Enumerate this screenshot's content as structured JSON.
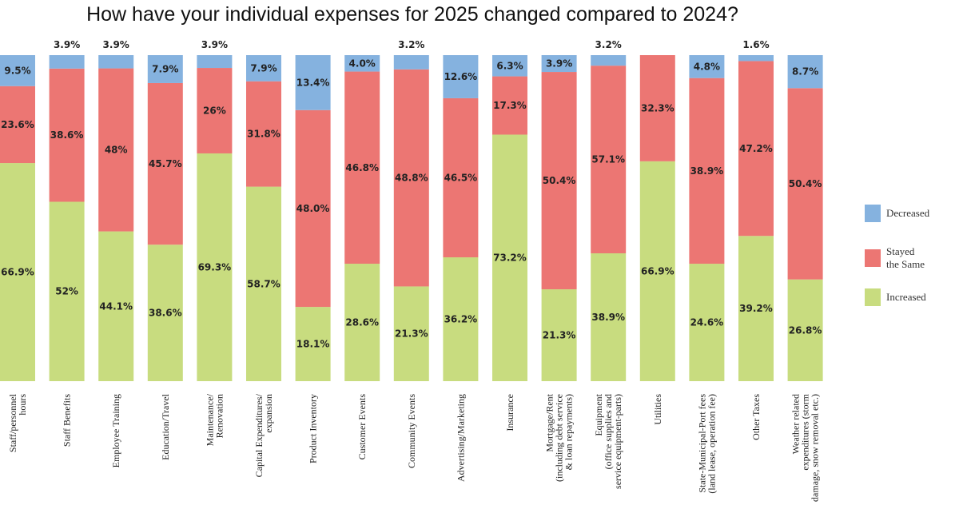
{
  "chart_data": {
    "type": "bar",
    "stacked": true,
    "title": "How have your individual expenses for 2025 changed compared to 2024?",
    "xlabel": "",
    "ylabel": "",
    "ylim": [
      0,
      100
    ],
    "grid": false,
    "legend_position": "right",
    "categories": [
      [
        "Staff/personnel",
        "hours"
      ],
      [
        "Staff Benefits"
      ],
      [
        "Employee Training"
      ],
      [
        "Education/Travel"
      ],
      [
        "Maintenance/",
        "Renovation"
      ],
      [
        "Capital Expenditures/",
        "expansion"
      ],
      [
        "Product Inventory"
      ],
      [
        "Customer Events"
      ],
      [
        "Community Events"
      ],
      [
        "Advertising/Marketing"
      ],
      [
        "Insurance"
      ],
      [
        "Mortgage/Rent",
        "(including debt service",
        "& loan repayments)"
      ],
      [
        "Equipment",
        "(office supplies and",
        "service equipment-parts)"
      ],
      [
        "Utilities"
      ],
      [
        "State-Municipal-Port fees",
        "(land lease, operation fee)"
      ],
      [
        "Other Taxes"
      ],
      [
        "Weather related",
        "expenditures (storm",
        "damage, snow removal etc.)"
      ]
    ],
    "series": [
      {
        "name": "Increased",
        "color": "#c8dc7f",
        "values": [
          66.9,
          52,
          44.1,
          38.6,
          69.3,
          58.7,
          18.1,
          28.6,
          21.3,
          36.2,
          73.2,
          21.3,
          38.9,
          66.9,
          24.6,
          39.2,
          26.8
        ],
        "labels": [
          "66.9%",
          "52%",
          "44.1%",
          "38.6%",
          "69.3%",
          "58.7%",
          "18.1%",
          "28.6%",
          "21.3%",
          "36.2%",
          "73.2%",
          "21.3%",
          "38.9%",
          "66.9%",
          "24.6%",
          "39.2%",
          "26.8%"
        ]
      },
      {
        "name": "Stayed the Same",
        "color": "#ec7673",
        "values": [
          23.6,
          38.6,
          48,
          45.7,
          26,
          31.8,
          48.0,
          46.8,
          48.8,
          46.5,
          17.3,
          50.4,
          57.1,
          32.3,
          38.9,
          47.2,
          50.4
        ],
        "labels": [
          "23.6%",
          "38.6%",
          "48%",
          "45.7%",
          "26%",
          "31.8%",
          "48.0%",
          "46.8%",
          "48.8%",
          "46.5%",
          "17.3%",
          "50.4%",
          "57.1%",
          "32.3%",
          "38.9%",
          "47.2%",
          "50.4%"
        ]
      },
      {
        "name": "Decreased",
        "color": "#85b2df",
        "values": [
          9.5,
          3.9,
          3.9,
          7.9,
          3.9,
          7.9,
          13.4,
          4.0,
          3.2,
          12.6,
          6.3,
          3.9,
          3.2,
          0,
          4.8,
          1.6,
          8.7
        ],
        "labels": [
          "9.5%",
          "3.9%",
          "3.9%",
          "7.9%",
          "3.9%",
          "7.9%",
          "13.4%",
          "4.0%",
          "3.2%",
          "12.6%",
          "6.3%",
          "3.9%",
          "3.2%",
          "",
          "4.8%",
          "1.6%",
          "8.7%"
        ]
      }
    ],
    "legend": [
      {
        "key": "decreased",
        "lines": [
          "Decreased"
        ],
        "color": "#85b2df"
      },
      {
        "key": "stayed",
        "lines": [
          "Stayed",
          "the Same"
        ],
        "color": "#ec7673"
      },
      {
        "key": "increased",
        "lines": [
          "Increased"
        ],
        "color": "#c8dc7f"
      }
    ]
  }
}
